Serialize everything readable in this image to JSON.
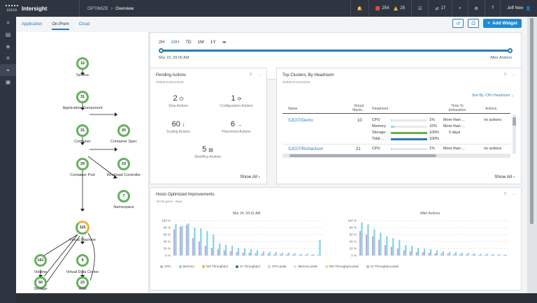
{
  "topbar": {
    "vendor": "cisco",
    "brand": "Intersight",
    "breadcrumb": [
      "OPTIMIZE",
      "Overview"
    ],
    "alarms_critical": "254",
    "alarms_warning": "25",
    "requests": "17",
    "user": "Jeff New"
  },
  "subtabs": [
    "Application",
    "On-Prem",
    "Cloud"
  ],
  "add_widget_label": "Add Widget",
  "topology": {
    "nodes": [
      {
        "count": "15",
        "label": "Service"
      },
      {
        "count": "31",
        "label": "Application Component"
      },
      {
        "count": "31",
        "label": "Container"
      },
      {
        "count": "20",
        "label": "Container Spec"
      },
      {
        "count": "29",
        "label": "Container Pod"
      },
      {
        "count": "19",
        "label": "Workload Controller"
      },
      {
        "count": "7",
        "label": "Namespace"
      },
      {
        "count": "115",
        "label": "Virtual Machine"
      },
      {
        "count": "161",
        "label": "Volume"
      },
      {
        "count": "9",
        "label": "Virtual Data Center"
      },
      {
        "count": "50",
        "label": "Storage"
      },
      {
        "count": "23",
        "label": "Host"
      }
    ]
  },
  "time_range": {
    "options": [
      "2H",
      "24H",
      "7D",
      "1M",
      "1Y"
    ],
    "selected": "24H",
    "start_label": "Mar 23, 09:00 AM",
    "end_label": "After Actions"
  },
  "pending_actions": {
    "title": "Pending Actions",
    "subtitle": "Global Environment",
    "metrics": [
      {
        "value": "2",
        "icon": "power-icon",
        "label": "Stop Actions"
      },
      {
        "value": "1",
        "icon": "refresh-icon",
        "label": "Configuration Actions"
      },
      {
        "value": "60",
        "icon": "resize-vertical-icon",
        "label": "Scaling Actions"
      },
      {
        "value": "6",
        "icon": "arrow-right-icon",
        "label": "Placement Actions"
      },
      {
        "value": "5",
        "icon": "server-icon",
        "label": "Start/Buy Actions"
      }
    ],
    "show_all": "Show All"
  },
  "top_clusters": {
    "title": "Top Clusters, By Headroom",
    "subtitle": "Global Environment",
    "sort_label": "Sort By: CPU Headroom",
    "columns": [
      "Name",
      "Virtual Machi...",
      "Headroom",
      "Time To Exhaustion",
      "Actions"
    ],
    "rows": [
      {
        "name": "SJC07/Demo",
        "vms": "10",
        "headroom": [
          {
            "metric": "CPU",
            "pct": "1%",
            "fill": 0.01,
            "color": "#9fd3ec",
            "exhaustion": "More than ..."
          },
          {
            "metric": "Memory",
            "pct": "10%",
            "fill": 0.1,
            "color": "#9fd3ec",
            "exhaustion": "More than ..."
          },
          {
            "metric": "Storage",
            "pct": "100%",
            "fill": 1.0,
            "color": "#6ab04c",
            "exhaustion": "0 days"
          },
          {
            "metric": "Total ...",
            "pct": "100%",
            "fill": 1.0,
            "color": "#2a7bb8",
            "exhaustion": ""
          }
        ],
        "actions": "no actions"
      },
      {
        "name": "SJC07/Richardson",
        "vms": "21",
        "headroom": [
          {
            "metric": "CPU",
            "pct": "1%",
            "fill": 0.01,
            "color": "#9fd3ec",
            "exhaustion": "More than ..."
          }
        ],
        "actions": "no actions"
      }
    ],
    "show_all": "Show All"
  },
  "hosts_optimized": {
    "title": "Hosts Optimized Improvements",
    "subtitle": "All On-prem - Now",
    "left_title": "Mar 24, 09:41 AM",
    "right_title": "After Actions",
    "y_ticks": [
      "100 %",
      "80 %",
      "60 %",
      "40 %",
      "20 %",
      "0 %"
    ],
    "legend": [
      {
        "name": "CPU",
        "color": "#c9a6e0"
      },
      {
        "name": "Memory",
        "color": "#7fd3e6"
      },
      {
        "name": "Net Throughput",
        "color": "#f2b233"
      },
      {
        "name": "IO Throughput",
        "color": "#2e7d32"
      },
      {
        "name": "CPU peak",
        "color": "#d9c8ee"
      },
      {
        "name": "Memory peak",
        "color": "#bfe8f2"
      },
      {
        "name": "Net Throughput peak",
        "color": "#f7d48a"
      },
      {
        "name": "IO Throughput peak",
        "color": "#9ccc9c"
      }
    ]
  },
  "chart_data": [
    {
      "type": "bar",
      "title": "Mar 24, 09:41 AM",
      "ylim": [
        0,
        100
      ],
      "series": [
        {
          "name": "CPU",
          "values": [
            75,
            82,
            88,
            50,
            40,
            28,
            22,
            18,
            15,
            12,
            10,
            8,
            8,
            6,
            5,
            5,
            4,
            4,
            3,
            3,
            2,
            2,
            2,
            2
          ]
        },
        {
          "name": "Memory",
          "values": [
            90,
            85,
            92,
            80,
            78,
            70,
            60,
            35,
            30,
            28,
            22,
            20,
            18,
            15,
            12,
            10,
            10,
            8,
            8,
            6,
            5,
            5,
            4,
            45
          ]
        }
      ]
    },
    {
      "type": "bar",
      "title": "After Actions",
      "ylim": [
        0,
        100
      ],
      "series": [
        {
          "name": "CPU",
          "values": [
            70,
            60,
            55,
            45,
            30,
            25,
            20,
            15,
            12,
            10,
            10,
            8,
            6,
            6,
            5,
            4,
            4,
            3,
            3,
            2,
            2,
            2,
            2,
            2
          ]
        },
        {
          "name": "Memory",
          "values": [
            95,
            90,
            75,
            65,
            55,
            50,
            45,
            30,
            28,
            22,
            20,
            18,
            15,
            12,
            10,
            10,
            8,
            7,
            6,
            5,
            5,
            4,
            4,
            3
          ]
        }
      ]
    }
  ]
}
